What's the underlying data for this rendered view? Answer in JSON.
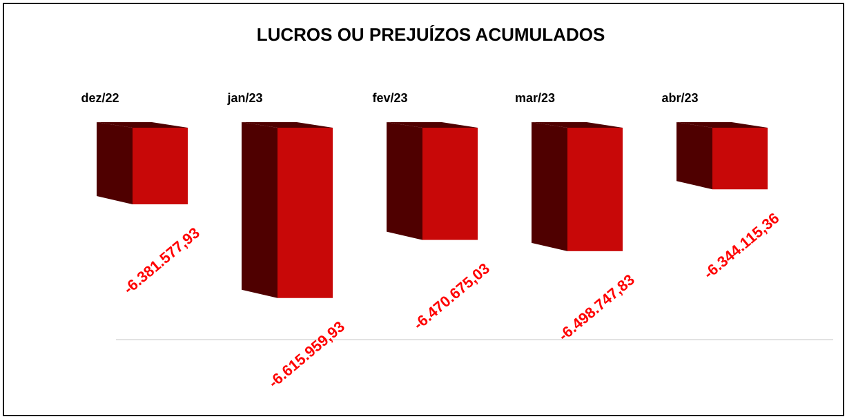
{
  "chart_data": {
    "type": "bar3d",
    "title": "LUCROS OU PREJUÍZOS ACUMULADOS",
    "categories": [
      "dez/22",
      "jan/23",
      "fev/23",
      "mar/23",
      "abr/23"
    ],
    "values": [
      -6381577.93,
      -6615959.93,
      -6470675.03,
      -6498747.83,
      -6344115.36
    ],
    "value_labels": [
      "-6.381.577,93",
      "-6.615.959,93",
      "-6.470.675,03",
      "-6.498.747,83",
      "-6.344.115,36"
    ],
    "color": "#c80808",
    "side_color": "#4f0000",
    "label_color": "#ff0000",
    "ylim": [
      -6720000,
      -6190000
    ]
  }
}
